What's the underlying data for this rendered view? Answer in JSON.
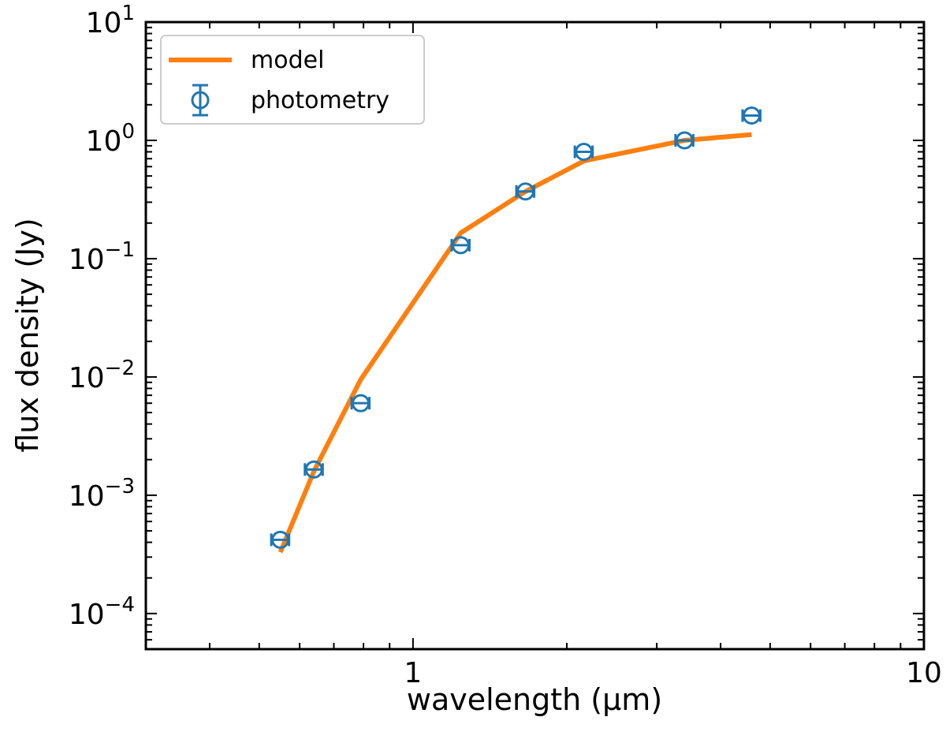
{
  "colors": {
    "model": "#ff7f0e",
    "photometry": "#1f77b4",
    "axes": "#000000",
    "background": "#ffffff"
  },
  "chart_data": {
    "type": "line",
    "xscale": "log",
    "yscale": "log",
    "xlim": [
      0.3,
      10
    ],
    "ylim": [
      5e-05,
      10
    ],
    "xlabel": "wavelength (μm)",
    "ylabel": "flux density (Jy)",
    "x_ticks": [
      {
        "value": 1,
        "label": "1"
      },
      {
        "value": 10,
        "label": "10"
      }
    ],
    "y_ticks": [
      {
        "value": 0.0001,
        "base": "10",
        "exp": "−4"
      },
      {
        "value": 0.001,
        "base": "10",
        "exp": "−3"
      },
      {
        "value": 0.01,
        "base": "10",
        "exp": "−2"
      },
      {
        "value": 0.1,
        "base": "10",
        "exp": "−1"
      },
      {
        "value": 1,
        "base": "10",
        "exp": "0"
      },
      {
        "value": 10,
        "base": "10",
        "exp": "1"
      }
    ],
    "legend": {
      "position": "top-left",
      "entries": [
        {
          "name": "model",
          "kind": "line"
        },
        {
          "name": "photometry",
          "kind": "errorbar"
        }
      ]
    },
    "series": [
      {
        "name": "model",
        "kind": "line",
        "x": [
          0.55,
          0.64,
          0.79,
          1.24,
          1.66,
          2.16,
          3.4,
          4.6
        ],
        "y": [
          0.00033,
          0.0016,
          0.0095,
          0.165,
          0.37,
          0.67,
          1.0,
          1.12
        ]
      },
      {
        "name": "photometry",
        "kind": "errorbar",
        "x": [
          0.55,
          0.64,
          0.79,
          1.24,
          1.66,
          2.16,
          3.4,
          4.6
        ],
        "y": [
          0.00042,
          0.00165,
          0.006,
          0.13,
          0.37,
          0.8,
          1.0,
          1.62
        ],
        "xerr_rel": 0.04
      }
    ]
  }
}
